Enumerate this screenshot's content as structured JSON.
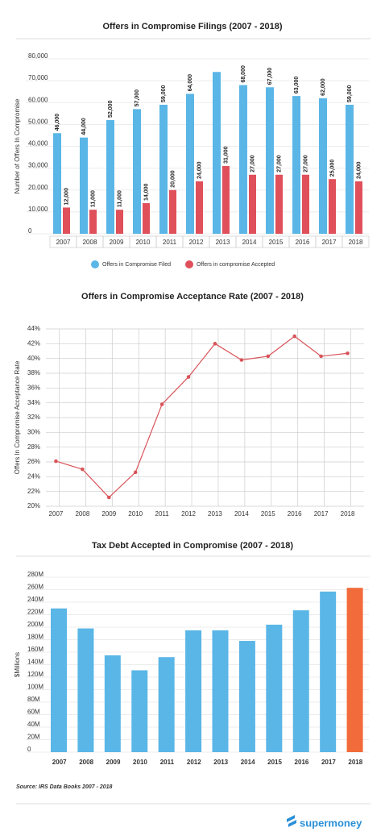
{
  "chart_data": [
    {
      "type": "bar",
      "title": "Offers in Compromise Filings (2007 - 2018)",
      "y_label": "Number of Offers In Compromise",
      "categories": [
        "2007",
        "2008",
        "2009",
        "2010",
        "2011",
        "2012",
        "2013",
        "2014",
        "2015",
        "2016",
        "2017",
        "2018"
      ],
      "series": [
        {
          "name": "Offers in Compromise Filed",
          "color": "#5ab6e6",
          "values": [
            46000,
            44000,
            52000,
            57000,
            59000,
            64000,
            74000,
            68000,
            67000,
            63000,
            62000,
            59000
          ],
          "value_labels": [
            "46,000",
            "44,000",
            "52,000",
            "57,000",
            "59,000",
            "64,000",
            null,
            "68,000",
            "67,000",
            "63,000",
            "62,000",
            "59,000"
          ]
        },
        {
          "name": "Offers in compromise Accepted",
          "color": "#e0505a",
          "values": [
            12000,
            11000,
            11000,
            14000,
            20000,
            24000,
            31000,
            27000,
            27000,
            27000,
            25000,
            24000
          ],
          "value_labels": [
            "12,000",
            "11,000",
            "11,000",
            "14,000",
            "20,000",
            "24,000",
            "31,000",
            "27,000",
            "27,000",
            "27,000",
            "25,000",
            "24,000"
          ]
        }
      ],
      "ylim": [
        0,
        80000
      ],
      "yticks": [
        0,
        {
          "value": 10000,
          "label": "10,000"
        },
        {
          "value": 20000,
          "label": "20,000"
        },
        {
          "value": 30000,
          "label": "30,000"
        },
        {
          "value": 40000,
          "label": "40,000"
        },
        {
          "value": 50000,
          "label": "50,000"
        },
        {
          "value": 60000,
          "label": "60,000"
        },
        {
          "value": 70000,
          "label": "70,000"
        },
        {
          "value": 80000,
          "label": "80,000"
        }
      ],
      "grid": true,
      "legend": "bottom"
    },
    {
      "type": "line",
      "title": "Offers in Compromise Acceptance Rate (2007 - 2018)",
      "y_label": "Offers In Compromise Acceptance Rate",
      "categories": [
        "2007",
        "2008",
        "2009",
        "2010",
        "2011",
        "2012",
        "2013",
        "2014",
        "2015",
        "2016",
        "2017",
        "2018"
      ],
      "values": [
        26.1,
        25.0,
        21.2,
        24.6,
        33.8,
        37.5,
        42.0,
        39.8,
        40.3,
        43.0,
        40.3,
        40.7
      ],
      "color": "#d9545a",
      "ylim": [
        20,
        44
      ],
      "yticks": [
        {
          "value": 20,
          "label": "20%"
        },
        {
          "value": 22,
          "label": "22%"
        },
        {
          "value": 24,
          "label": "24%"
        },
        {
          "value": 26,
          "label": "26%"
        },
        {
          "value": 28,
          "label": "28%"
        },
        {
          "value": 30,
          "label": "30%"
        },
        {
          "value": 32,
          "label": "32%"
        },
        {
          "value": 34,
          "label": "34%"
        },
        {
          "value": 36,
          "label": "36%"
        },
        {
          "value": 38,
          "label": "38%"
        },
        {
          "value": 40,
          "label": "40%"
        },
        {
          "value": 42,
          "label": "42%"
        },
        {
          "value": 44,
          "label": "44%"
        }
      ],
      "grid": true
    },
    {
      "type": "bar",
      "title": "Tax Debt Accepted in Compromise (2007 - 2018)",
      "y_label": "$Millions",
      "categories": [
        "2007",
        "2008",
        "2009",
        "2010",
        "2011",
        "2012",
        "2013",
        "2014",
        "2015",
        "2016",
        "2017",
        "2018"
      ],
      "values": [
        230,
        198,
        155,
        131,
        152,
        195,
        195,
        178,
        204,
        227,
        257,
        263
      ],
      "colors": [
        "#5ab6e6",
        "#5ab6e6",
        "#5ab6e6",
        "#5ab6e6",
        "#5ab6e6",
        "#5ab6e6",
        "#5ab6e6",
        "#5ab6e6",
        "#5ab6e6",
        "#5ab6e6",
        "#5ab6e6",
        "#f26b3a"
      ],
      "ylim": [
        0,
        280
      ],
      "yticks": [
        0,
        {
          "value": 20,
          "label": "20M"
        },
        {
          "value": 40,
          "label": "40M"
        },
        {
          "value": 60,
          "label": "60M"
        },
        {
          "value": 80,
          "label": "80M"
        },
        {
          "value": 100,
          "label": "100M"
        },
        {
          "value": 120,
          "label": "120M"
        },
        {
          "value": 140,
          "label": "140M"
        },
        {
          "value": 160,
          "label": "160M"
        },
        {
          "value": 180,
          "label": "180M"
        },
        {
          "value": 200,
          "label": "200M"
        },
        {
          "value": 220,
          "label": "220M"
        },
        {
          "value": 240,
          "label": "240M"
        },
        {
          "value": 260,
          "label": "260M"
        },
        {
          "value": 280,
          "label": "280M"
        }
      ],
      "grid": true
    }
  ],
  "source": "Source: IRS Data Books 2007 - 2018",
  "brand": "supermoney"
}
